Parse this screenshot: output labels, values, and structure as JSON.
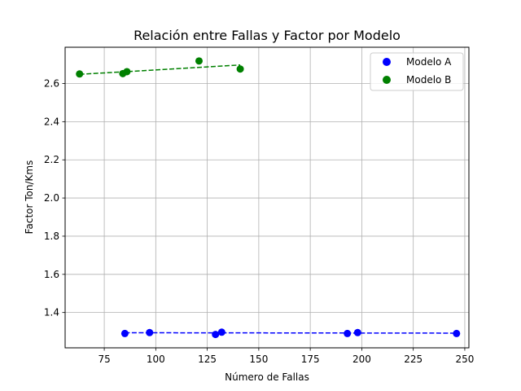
{
  "chart_data": {
    "type": "scatter",
    "title": "Relación entre Fallas y Factor por Modelo",
    "xlabel": "Número de Fallas",
    "ylabel": "Factor Ton/Kms",
    "xlim": [
      56,
      252
    ],
    "ylim": [
      1.215,
      2.79
    ],
    "x_ticks": [
      75,
      100,
      125,
      150,
      175,
      200,
      225,
      250
    ],
    "y_ticks": [
      1.4,
      1.6,
      1.8,
      2.0,
      2.2,
      2.4,
      2.6
    ],
    "grid": true,
    "legend_position": "top-right",
    "series": [
      {
        "name": "Modelo A",
        "color": "#0000ff",
        "points": [
          {
            "x": 85,
            "y": 1.29
          },
          {
            "x": 97,
            "y": 1.295
          },
          {
            "x": 129,
            "y": 1.285
          },
          {
            "x": 132,
            "y": 1.297
          },
          {
            "x": 193,
            "y": 1.29
          },
          {
            "x": 198,
            "y": 1.295
          },
          {
            "x": 246,
            "y": 1.29
          }
        ],
        "trend": {
          "x": [
            85,
            246
          ],
          "y": [
            1.294,
            1.292
          ]
        }
      },
      {
        "name": "Modelo B",
        "color": "#008000",
        "points": [
          {
            "x": 63,
            "y": 2.65
          },
          {
            "x": 84,
            "y": 2.652
          },
          {
            "x": 86,
            "y": 2.662
          },
          {
            "x": 121,
            "y": 2.718
          },
          {
            "x": 141,
            "y": 2.676
          }
        ],
        "trend": {
          "x": [
            63,
            141
          ],
          "y": [
            2.648,
            2.697
          ]
        }
      }
    ]
  }
}
